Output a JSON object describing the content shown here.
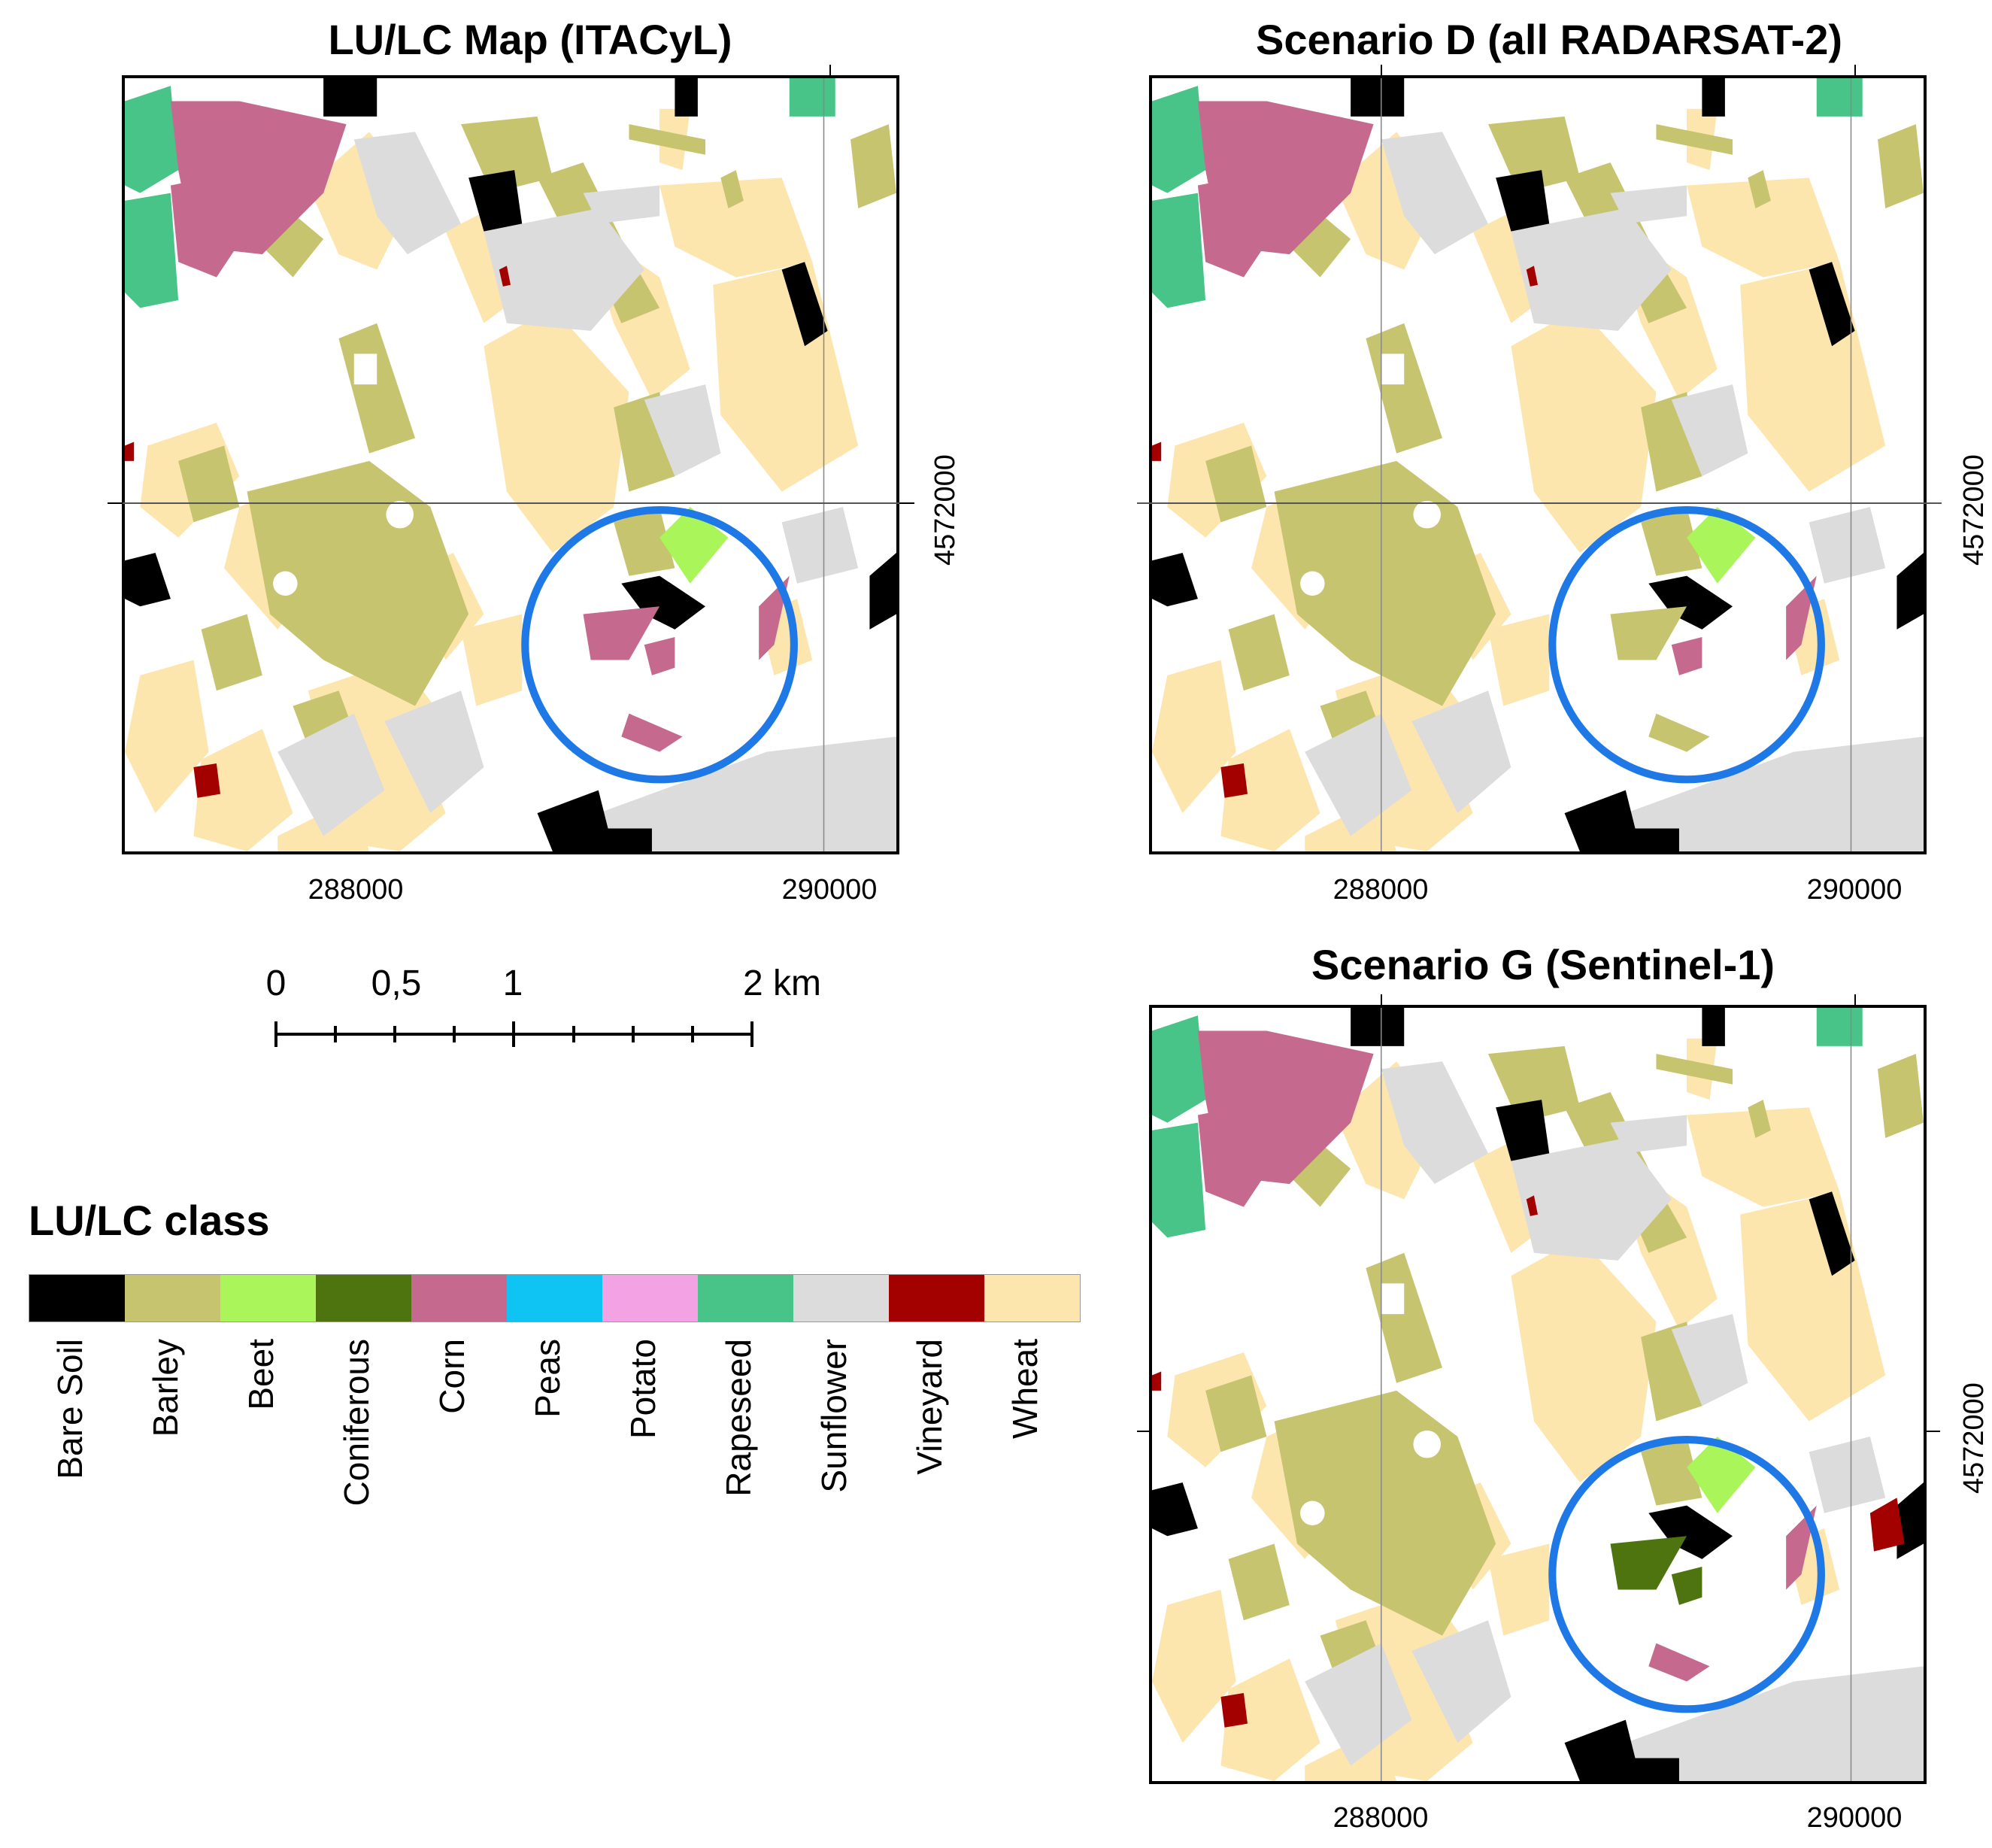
{
  "panels": {
    "itacyl": {
      "title": "LU/LC Map (ITACyL)"
    },
    "scenario_d": {
      "title": "Scenario D (all RADARSAT-2)"
    },
    "scenario_g": {
      "title": "Scenario G (Sentinel-1)"
    }
  },
  "axes": {
    "x_ticks": [
      "288000",
      "290000"
    ],
    "y_tick": "4572000"
  },
  "scalebar": {
    "labels": [
      "0",
      "0,5",
      "1",
      "2 km"
    ]
  },
  "legend": {
    "title": "LU/LC class",
    "classes": [
      {
        "name": "Bare Soil",
        "color": "#000000"
      },
      {
        "name": "Barley",
        "color": "#c6c46e"
      },
      {
        "name": "Beet",
        "color": "#aaf55a"
      },
      {
        "name": "Coniferous",
        "color": "#4e7410"
      },
      {
        "name": "Corn",
        "color": "#c56a8e"
      },
      {
        "name": "Peas",
        "color": "#0fc4f2"
      },
      {
        "name": "Potato",
        "color": "#f3a2e3"
      },
      {
        "name": "Rapeseed",
        "color": "#49c489"
      },
      {
        "name": "Sunflower",
        "color": "#dcdcdc"
      },
      {
        "name": "Vineyard",
        "color": "#a30000"
      },
      {
        "name": "Wheat",
        "color": "#fde5ae"
      }
    ]
  },
  "highlight_color": "#1e78e6"
}
